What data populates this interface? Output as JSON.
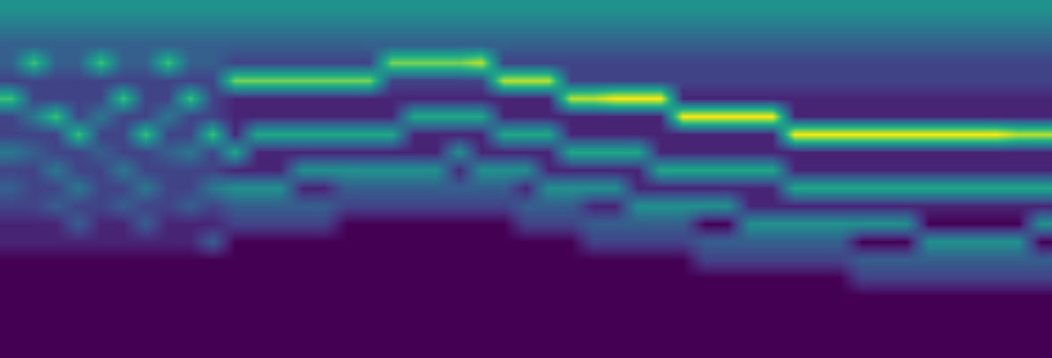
{
  "chart_data": {
    "type": "heatmap",
    "tick_labels": false,
    "grid": false,
    "zlim": [
      0,
      10
    ],
    "cells_by_column": [
      [
        5,
        4,
        3,
        3,
        2,
        7,
        2,
        2,
        4,
        2,
        3,
        2,
        1,
        1,
        0,
        0,
        0,
        0,
        0,
        0
      ],
      [
        5,
        4,
        3,
        7,
        2,
        2,
        4,
        2,
        3,
        2,
        2,
        2,
        1,
        1,
        0,
        0,
        0,
        0,
        0,
        0
      ],
      [
        5,
        4,
        3,
        3,
        2,
        2,
        7,
        2,
        2,
        4,
        2,
        3,
        1,
        1,
        0,
        0,
        0,
        0,
        0,
        0
      ],
      [
        5,
        4,
        3,
        3,
        2,
        2,
        2,
        7,
        2,
        2,
        4,
        2,
        3,
        1,
        0,
        0,
        0,
        0,
        0,
        0
      ],
      [
        5,
        4,
        3,
        7,
        2,
        2,
        4,
        2,
        3,
        2,
        2,
        2,
        1,
        1,
        0,
        0,
        0,
        0,
        0,
        0
      ],
      [
        5,
        4,
        3,
        3,
        2,
        7,
        2,
        2,
        2,
        4,
        2,
        3,
        1,
        1,
        0,
        0,
        0,
        0,
        0,
        0
      ],
      [
        5,
        4,
        3,
        3,
        2,
        2,
        2,
        7,
        2,
        2,
        4,
        2,
        3,
        1,
        0,
        0,
        0,
        0,
        0,
        0
      ],
      [
        5,
        4,
        3,
        7,
        2,
        2,
        4,
        2,
        3,
        2,
        2,
        2,
        1,
        1,
        0,
        0,
        0,
        0,
        0,
        0
      ],
      [
        5,
        4,
        3,
        3,
        2,
        7,
        2,
        2,
        4,
        2,
        2,
        3,
        1,
        1,
        0,
        0,
        0,
        0,
        0,
        0
      ],
      [
        5,
        4,
        3,
        3,
        2,
        2,
        2,
        7,
        2,
        2,
        4,
        2,
        1,
        3,
        0,
        0,
        0,
        0,
        0,
        0
      ],
      [
        5,
        4,
        3,
        2,
        8,
        1,
        1,
        1,
        6,
        1,
        5,
        3,
        2,
        0,
        0,
        0,
        0,
        0,
        0,
        0
      ],
      [
        5,
        4,
        3,
        2,
        8,
        1,
        1,
        6,
        1,
        1,
        5,
        3,
        2,
        0,
        0,
        0,
        0,
        0,
        0,
        0
      ],
      [
        5,
        4,
        3,
        2,
        8,
        1,
        1,
        6,
        1,
        1,
        5,
        3,
        2,
        0,
        0,
        0,
        0,
        0,
        0,
        0
      ],
      [
        5,
        4,
        3,
        2,
        8,
        1,
        1,
        6,
        1,
        5,
        1,
        3,
        2,
        0,
        0,
        0,
        0,
        0,
        0,
        0
      ],
      [
        5,
        4,
        3,
        2,
        8,
        1,
        1,
        6,
        1,
        5,
        1,
        3,
        2,
        0,
        0,
        0,
        0,
        0,
        0,
        0
      ],
      [
        5,
        4,
        3,
        2,
        8,
        1,
        1,
        6,
        1,
        5,
        3,
        2,
        0,
        0,
        0,
        0,
        0,
        0,
        0,
        0
      ],
      [
        5,
        4,
        3,
        2,
        8,
        1,
        1,
        6,
        1,
        5,
        3,
        2,
        0,
        0,
        0,
        0,
        0,
        0,
        0,
        0
      ],
      [
        5,
        4,
        3,
        8,
        2,
        1,
        1,
        6,
        1,
        5,
        3,
        2,
        0,
        0,
        0,
        0,
        0,
        0,
        0,
        0
      ],
      [
        5,
        4,
        3,
        8,
        2,
        1,
        6,
        1,
        1,
        5,
        3,
        2,
        0,
        0,
        0,
        0,
        0,
        0,
        0,
        0
      ],
      [
        5,
        4,
        3,
        8,
        2,
        1,
        6,
        1,
        1,
        5,
        3,
        2,
        0,
        0,
        0,
        0,
        0,
        0,
        0,
        0
      ],
      [
        5,
        4,
        3,
        8,
        2,
        1,
        6,
        1,
        5,
        1,
        3,
        2,
        0,
        0,
        0,
        0,
        0,
        0,
        0,
        0
      ],
      [
        5,
        4,
        3,
        9,
        2,
        1,
        6,
        1,
        1,
        5,
        3,
        2,
        0,
        0,
        0,
        0,
        0,
        0,
        0,
        0
      ],
      [
        5,
        4,
        3,
        2,
        9,
        1,
        1,
        6,
        1,
        5,
        3,
        2,
        0,
        0,
        0,
        0,
        0,
        0,
        0,
        0
      ],
      [
        5,
        4,
        3,
        2,
        9,
        1,
        1,
        6,
        1,
        5,
        1,
        3,
        2,
        0,
        0,
        0,
        0,
        0,
        0,
        0
      ],
      [
        5,
        4,
        3,
        2,
        9,
        1,
        1,
        6,
        1,
        1,
        5,
        3,
        2,
        0,
        0,
        0,
        0,
        0,
        0,
        0
      ],
      [
        5,
        4,
        3,
        2,
        2,
        9,
        1,
        1,
        6,
        1,
        5,
        3,
        2,
        0,
        0,
        0,
        0,
        0,
        0,
        0
      ],
      [
        5,
        4,
        3,
        2,
        2,
        9,
        1,
        1,
        6,
        1,
        5,
        1,
        3,
        2,
        0,
        0,
        0,
        0,
        0,
        0
      ],
      [
        5,
        4,
        3,
        2,
        2,
        10,
        1,
        1,
        6,
        1,
        5,
        1,
        3,
        2,
        0,
        0,
        0,
        0,
        0,
        0
      ],
      [
        5,
        4,
        3,
        2,
        2,
        10,
        1,
        1,
        6,
        1,
        1,
        5,
        3,
        2,
        0,
        0,
        0,
        0,
        0,
        0
      ],
      [
        5,
        4,
        3,
        2,
        2,
        10,
        1,
        1,
        1,
        6,
        1,
        5,
        3,
        2,
        0,
        0,
        0,
        0,
        0,
        0
      ],
      [
        5,
        4,
        3,
        2,
        2,
        1,
        10,
        1,
        1,
        6,
        1,
        5,
        3,
        2,
        0,
        0,
        0,
        0,
        0,
        0
      ],
      [
        5,
        4,
        3,
        2,
        2,
        1,
        10,
        1,
        1,
        6,
        1,
        5,
        0,
        3,
        2,
        0,
        0,
        0,
        0,
        0
      ],
      [
        5,
        4,
        3,
        2,
        2,
        1,
        10,
        1,
        1,
        6,
        1,
        5,
        0,
        3,
        2,
        0,
        0,
        0,
        0,
        0
      ],
      [
        5,
        4,
        3,
        2,
        2,
        1,
        10,
        1,
        1,
        6,
        1,
        1,
        5,
        3,
        2,
        0,
        0,
        0,
        0,
        0
      ],
      [
        5,
        4,
        3,
        2,
        2,
        1,
        10,
        1,
        1,
        6,
        1,
        1,
        5,
        3,
        2,
        0,
        0,
        0,
        0,
        0
      ],
      [
        5,
        4,
        3,
        2,
        2,
        1,
        1,
        10,
        1,
        1,
        6,
        1,
        5,
        3,
        2,
        0,
        0,
        0,
        0,
        0
      ],
      [
        5,
        4,
        3,
        2,
        2,
        1,
        1,
        10,
        1,
        1,
        6,
        1,
        5,
        3,
        2,
        0,
        0,
        0,
        0,
        0
      ],
      [
        5,
        4,
        3,
        2,
        2,
        1,
        1,
        10,
        1,
        1,
        6,
        1,
        5,
        3,
        2,
        0,
        0,
        0,
        0,
        0
      ],
      [
        5,
        4,
        3,
        2,
        2,
        1,
        1,
        10,
        1,
        1,
        6,
        1,
        5,
        0,
        3,
        2,
        0,
        0,
        0,
        0
      ],
      [
        5,
        4,
        3,
        2,
        2,
        1,
        1,
        10,
        1,
        1,
        6,
        1,
        5,
        0,
        3,
        2,
        0,
        0,
        0,
        0
      ],
      [
        5,
        4,
        3,
        2,
        2,
        1,
        1,
        10,
        1,
        1,
        6,
        1,
        5,
        0,
        3,
        2,
        0,
        0,
        0,
        0
      ],
      [
        5,
        4,
        3,
        2,
        2,
        1,
        1,
        10,
        1,
        1,
        6,
        1,
        0,
        5,
        3,
        2,
        0,
        0,
        0,
        0
      ],
      [
        5,
        4,
        3,
        2,
        2,
        1,
        1,
        10,
        1,
        1,
        6,
        1,
        0,
        5,
        3,
        2,
        0,
        0,
        0,
        0
      ],
      [
        5,
        4,
        3,
        2,
        2,
        1,
        1,
        10,
        1,
        1,
        6,
        1,
        0,
        5,
        3,
        2,
        0,
        0,
        0,
        0
      ],
      [
        5,
        4,
        3,
        2,
        2,
        1,
        1,
        10,
        1,
        1,
        6,
        1,
        0,
        5,
        3,
        2,
        0,
        0,
        0,
        0
      ],
      [
        5,
        4,
        3,
        2,
        2,
        1,
        1,
        9,
        1,
        1,
        6,
        1,
        0,
        5,
        3,
        2,
        0,
        0,
        0,
        0
      ],
      [
        5,
        4,
        3,
        2,
        2,
        1,
        1,
        9,
        1,
        1,
        6,
        1,
        5,
        0,
        3,
        2,
        0,
        0,
        0,
        0
      ]
    ]
  }
}
